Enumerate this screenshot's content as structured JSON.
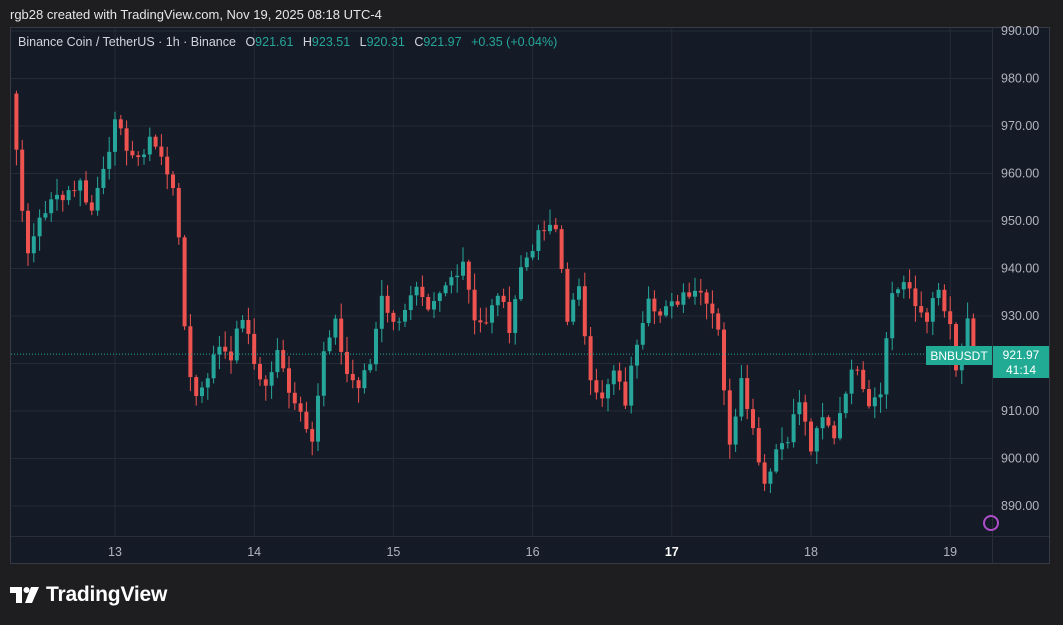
{
  "header": {
    "attribution": "rgb28 created with TradingView.com, Nov 19, 2025 08:18 UTC-4"
  },
  "legend": {
    "symbol": "Binance Coin / TetherUS · 1h · Binance",
    "open_label": "O",
    "open_value": "921.61",
    "high_label": "H",
    "high_value": "923.51",
    "low_label": "L",
    "low_value": "920.31",
    "close_label": "C",
    "close_value": "921.97",
    "change": "+0.35 (+0.04%)"
  },
  "badge": {
    "symbol": "BNBUSDT",
    "price": "921.97",
    "countdown": "41:14"
  },
  "footer": {
    "logo_text": "TradingView"
  },
  "colors": {
    "up": "#26a69a",
    "down": "#ef5350",
    "grid": "#252b37",
    "axis_text": "#b2b5be"
  },
  "chart_data": {
    "type": "candlestick",
    "title": "Binance Coin / TetherUS · 1h · Binance",
    "timeframe": "1h",
    "ylim": [
      883,
      993
    ],
    "y_ticks": [
      990,
      980,
      970,
      960,
      950,
      940,
      930,
      920,
      910,
      900,
      890
    ],
    "y_tick_labels": [
      "990.00",
      "980.00",
      "970.00",
      "960.00",
      "950.00",
      "940.00",
      "930.00",
      "920.00",
      "910.00",
      "900.00",
      "890.00"
    ],
    "xlim": [
      0,
      166
    ],
    "x_ticks": [
      {
        "label": "13",
        "index": 22,
        "bold": false
      },
      {
        "label": "14",
        "index": 46,
        "bold": false
      },
      {
        "label": "15",
        "index": 70,
        "bold": false
      },
      {
        "label": "16",
        "index": 94,
        "bold": false
      },
      {
        "label": "17",
        "index": 118,
        "bold": true
      },
      {
        "label": "18",
        "index": 142,
        "bold": false
      },
      {
        "label": "19",
        "index": 166,
        "bold": false
      }
    ],
    "last_price": 921.97,
    "anchors": [
      [
        0,
        968
      ],
      [
        2,
        976
      ],
      [
        4,
        977
      ],
      [
        5,
        965
      ],
      [
        7,
        942
      ],
      [
        9,
        951
      ],
      [
        12,
        955
      ],
      [
        16,
        958
      ],
      [
        18,
        952
      ],
      [
        20,
        962
      ],
      [
        22,
        970
      ],
      [
        24,
        966
      ],
      [
        26,
        962
      ],
      [
        28,
        968
      ],
      [
        30,
        963
      ],
      [
        32,
        958
      ],
      [
        33,
        945
      ],
      [
        34,
        928
      ],
      [
        35,
        918
      ],
      [
        36,
        913
      ],
      [
        38,
        918
      ],
      [
        40,
        924
      ],
      [
        42,
        922
      ],
      [
        44,
        930
      ],
      [
        46,
        920
      ],
      [
        48,
        915
      ],
      [
        50,
        922
      ],
      [
        52,
        915
      ],
      [
        54,
        910
      ],
      [
        56,
        905
      ],
      [
        58,
        922
      ],
      [
        60,
        928
      ],
      [
        62,
        918
      ],
      [
        64,
        915
      ],
      [
        66,
        920
      ],
      [
        68,
        935
      ],
      [
        70,
        928
      ],
      [
        72,
        932
      ],
      [
        74,
        935
      ],
      [
        76,
        930
      ],
      [
        80,
        938
      ],
      [
        82,
        942
      ],
      [
        84,
        930
      ],
      [
        86,
        928
      ],
      [
        88,
        935
      ],
      [
        90,
        928
      ],
      [
        92,
        940
      ],
      [
        94,
        945
      ],
      [
        96,
        948
      ],
      [
        98,
        948
      ],
      [
        99,
        940
      ],
      [
        100,
        930
      ],
      [
        102,
        935
      ],
      [
        104,
        918
      ],
      [
        106,
        912
      ],
      [
        108,
        918
      ],
      [
        110,
        912
      ],
      [
        112,
        925
      ],
      [
        114,
        935
      ],
      [
        116,
        930
      ],
      [
        118,
        932
      ],
      [
        120,
        935
      ],
      [
        122,
        936
      ],
      [
        124,
        934
      ],
      [
        126,
        928
      ],
      [
        127,
        915
      ],
      [
        128,
        902
      ],
      [
        130,
        918
      ],
      [
        132,
        906
      ],
      [
        134,
        895
      ],
      [
        136,
        902
      ],
      [
        138,
        905
      ],
      [
        140,
        912
      ],
      [
        142,
        902
      ],
      [
        144,
        908
      ],
      [
        146,
        905
      ],
      [
        148,
        915
      ],
      [
        150,
        920
      ],
      [
        152,
        912
      ],
      [
        154,
        915
      ],
      [
        156,
        935
      ],
      [
        158,
        937
      ],
      [
        160,
        932
      ],
      [
        162,
        930
      ],
      [
        164,
        935
      ],
      [
        166,
        927
      ],
      [
        167,
        918
      ],
      [
        169,
        928
      ],
      [
        170,
        922
      ]
    ]
  }
}
